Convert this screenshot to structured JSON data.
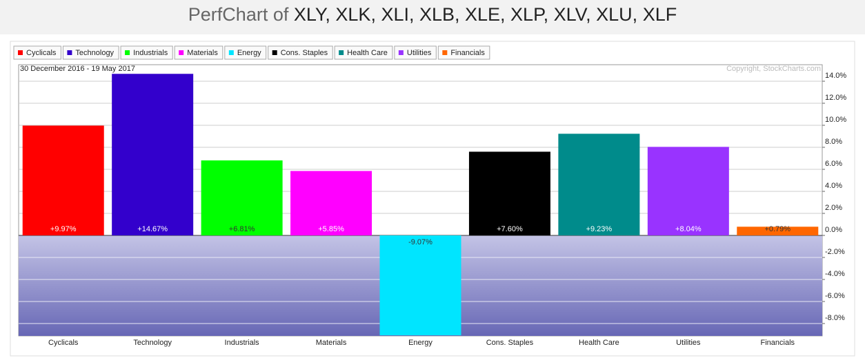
{
  "chart_data": {
    "type": "bar",
    "title": "PerfChart of",
    "tickers": "XLY, XLK, XLI, XLB, XLE, XLP, XLV, XLU, XLF",
    "date_range": "30 December 2016 - 19 May 2017",
    "copyright": "Copyright, StockCharts.com",
    "categories": [
      "Cyclicals",
      "Technology",
      "Industrials",
      "Materials",
      "Energy",
      "Cons. Staples",
      "Health Care",
      "Utilities",
      "Financials"
    ],
    "values": [
      9.97,
      14.67,
      6.81,
      5.85,
      -9.07,
      7.6,
      9.23,
      8.04,
      0.79
    ],
    "value_labels": [
      "+9.97%",
      "+14.67%",
      "+6.81%",
      "+5.85%",
      "-9.07%",
      "+7.60%",
      "+9.23%",
      "+8.04%",
      "+0.79%"
    ],
    "colors": [
      "#ff0000",
      "#3300cc",
      "#00ff00",
      "#ff00ff",
      "#00e5ff",
      "#000000",
      "#008b8b",
      "#9933ff",
      "#ff6600"
    ],
    "ylim": [
      -9.125,
      15.5
    ],
    "yticks": [
      {
        "value": -8,
        "label": "-8.0%"
      },
      {
        "value": -6,
        "label": "-6.0%"
      },
      {
        "value": -4,
        "label": "-4.0%"
      },
      {
        "value": -2,
        "label": "-2.0%"
      },
      {
        "value": 0,
        "label": "0.0%"
      },
      {
        "value": 2,
        "label": "2.0%"
      },
      {
        "value": 4,
        "label": "4.0%"
      },
      {
        "value": 6,
        "label": "6.0%"
      },
      {
        "value": 8,
        "label": "8.0%"
      },
      {
        "value": 10,
        "label": "10.0%"
      },
      {
        "value": 12,
        "label": "12.0%"
      },
      {
        "value": 14,
        "label": "14.0%"
      }
    ],
    "grid": true
  }
}
